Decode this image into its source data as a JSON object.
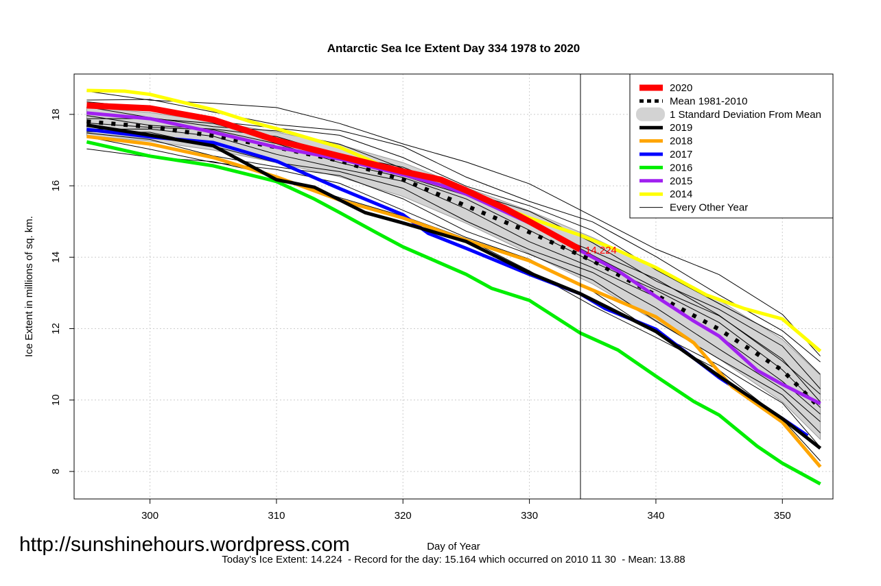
{
  "chart_data": {
    "type": "line",
    "title": "Antarctic Sea Ice Extent Day 334 1978 to 2020",
    "xlabel": "Day of Year",
    "ylabel": "Ice Extent in millions of sq. km.",
    "xlim": [
      294,
      354
    ],
    "ylim": [
      7.23,
      19.13
    ],
    "xticks": [
      300,
      310,
      320,
      330,
      340,
      350
    ],
    "yticks": [
      8,
      10,
      12,
      14,
      16,
      18
    ],
    "grid": true,
    "legend_position": "top-right",
    "vline_day": 334,
    "annotation": "14.224",
    "watermark": "http://sunshinehours.wordpress.com",
    "footer": "Today's Ice Extent: 14.224  - Record for the day: 15.164 which occurred on 2010 11 30  - Mean: 13.88",
    "band": {
      "name": "1 Standard Deviation From Mean",
      "x": [
        295,
        300,
        305,
        310,
        315,
        320,
        325,
        330,
        335,
        340,
        345,
        350,
        353
      ],
      "upper": [
        18.2,
        18.05,
        17.8,
        17.5,
        17.15,
        16.65,
        15.95,
        15.3,
        14.55,
        13.7,
        12.8,
        11.7,
        10.7
      ],
      "lower": [
        17.4,
        17.25,
        17.0,
        16.65,
        16.25,
        15.7,
        14.95,
        14.1,
        13.25,
        12.2,
        11.15,
        9.95,
        8.9
      ]
    },
    "mean": {
      "name": "Mean 1981-2010",
      "color": "#000000",
      "x": [
        295,
        300,
        305,
        310,
        315,
        320,
        325,
        330,
        335,
        340,
        345,
        350,
        353
      ],
      "y": [
        17.8,
        17.65,
        17.4,
        17.08,
        16.7,
        16.17,
        15.44,
        14.7,
        13.9,
        12.94,
        11.98,
        10.83,
        9.77
      ]
    },
    "series": [
      {
        "name": "2020",
        "color": "#ff0000",
        "width": 9,
        "x": [
          295,
          300,
          305,
          310,
          315,
          320,
          323,
          325,
          328,
          330,
          334
        ],
        "y": [
          18.25,
          18.17,
          17.85,
          17.27,
          16.83,
          16.4,
          16.17,
          15.87,
          15.38,
          15.0,
          14.22
        ]
      },
      {
        "name": "2019",
        "color": "#000000",
        "width": 5,
        "x": [
          295,
          300,
          305,
          310,
          313,
          317,
          320,
          325,
          330,
          334,
          340,
          345,
          350,
          353
        ],
        "y": [
          17.7,
          17.42,
          17.12,
          16.17,
          15.96,
          15.25,
          14.96,
          14.44,
          13.56,
          12.98,
          11.92,
          10.67,
          9.48,
          8.65
        ]
      },
      {
        "name": "2018",
        "color": "#ffa500",
        "width": 5,
        "x": [
          295,
          300,
          305,
          310,
          315,
          320,
          325,
          330,
          334,
          340,
          343,
          346,
          350,
          353
        ],
        "y": [
          17.38,
          17.17,
          16.79,
          16.25,
          15.6,
          15.1,
          14.48,
          13.9,
          13.23,
          12.33,
          11.6,
          10.38,
          9.38,
          8.13
        ]
      },
      {
        "name": "2017",
        "color": "#0000ff",
        "width": 5,
        "x": [
          295,
          300,
          305,
          310,
          315,
          320,
          322,
          325,
          330,
          334,
          336,
          340,
          345,
          350,
          352
        ],
        "y": [
          17.58,
          17.37,
          17.21,
          16.69,
          15.92,
          15.19,
          14.67,
          14.25,
          13.52,
          12.98,
          12.56,
          11.98,
          10.63,
          9.48,
          9.0
        ]
      },
      {
        "name": "2016",
        "color": "#00ee00",
        "width": 5,
        "x": [
          295,
          300,
          305,
          310,
          313,
          315,
          318,
          320,
          325,
          327,
          330,
          334,
          337,
          340,
          343,
          345,
          348,
          350,
          353
        ],
        "y": [
          17.23,
          16.83,
          16.56,
          16.12,
          15.63,
          15.25,
          14.67,
          14.29,
          13.52,
          13.13,
          12.79,
          11.88,
          11.4,
          10.67,
          9.96,
          9.58,
          8.71,
          8.23,
          7.65
        ]
      },
      {
        "name": "2015",
        "color": "#a020f0",
        "width": 5,
        "x": [
          295,
          300,
          305,
          310,
          315,
          320,
          323,
          325,
          330,
          334,
          337,
          340,
          343,
          345,
          348,
          350,
          353
        ],
        "y": [
          18.04,
          17.88,
          17.5,
          17.08,
          16.75,
          16.31,
          16.02,
          15.77,
          14.96,
          14.19,
          13.62,
          12.9,
          12.21,
          11.79,
          10.83,
          10.44,
          9.9
        ]
      },
      {
        "name": "2014",
        "color": "#ffff00",
        "width": 5,
        "x": [
          295,
          298,
          300,
          305,
          308,
          310,
          315,
          320,
          325,
          330,
          334,
          337,
          340,
          344,
          347,
          350,
          353
        ],
        "y": [
          18.67,
          18.65,
          18.56,
          18.13,
          17.79,
          17.6,
          17.08,
          16.31,
          15.83,
          15.1,
          14.62,
          14.19,
          13.71,
          12.94,
          12.56,
          12.27,
          11.37
        ]
      }
    ],
    "other_years": {
      "name": "Every Other Year",
      "color": "#000000",
      "offsets": [
        0.6,
        0.45,
        0.3,
        0.15,
        0.05,
        -0.1,
        -0.25,
        -0.4,
        -0.55,
        0.8,
        -0.7,
        0.2
      ]
    }
  }
}
